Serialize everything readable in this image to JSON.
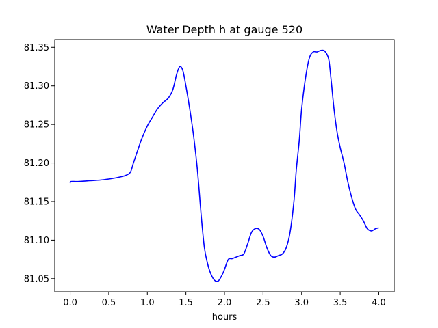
{
  "chart_data": {
    "type": "line",
    "title": "Water Depth h at gauge 520",
    "xlabel": "hours",
    "ylabel": "",
    "xlim": [
      -0.2,
      4.2
    ],
    "ylim": [
      81.033,
      81.36
    ],
    "xticks": [
      0.0,
      0.5,
      1.0,
      1.5,
      2.0,
      2.5,
      3.0,
      3.5,
      4.0
    ],
    "xtick_labels": [
      "0.0",
      "0.5",
      "1.0",
      "1.5",
      "2.0",
      "2.5",
      "3.0",
      "3.5",
      "4.0"
    ],
    "yticks": [
      81.05,
      81.1,
      81.15,
      81.2,
      81.25,
      81.3,
      81.35
    ],
    "ytick_labels": [
      "81.05",
      "81.10",
      "81.15",
      "81.20",
      "81.25",
      "81.30",
      "81.35"
    ],
    "grid": false,
    "series": [
      {
        "color": "#0000ff",
        "x": [
          0.0,
          0.01,
          0.1,
          0.25,
          0.4,
          0.55,
          0.65,
          0.72,
          0.78,
          0.82,
          0.87,
          0.93,
          1.0,
          1.07,
          1.13,
          1.2,
          1.27,
          1.33,
          1.38,
          1.42,
          1.46,
          1.5,
          1.55,
          1.6,
          1.65,
          1.7,
          1.74,
          1.78,
          1.82,
          1.87,
          1.92,
          1.97,
          2.0,
          2.05,
          2.1,
          2.15,
          2.2,
          2.25,
          2.3,
          2.35,
          2.4,
          2.45,
          2.5,
          2.55,
          2.6,
          2.65,
          2.7,
          2.75,
          2.8,
          2.85,
          2.9,
          2.93,
          2.97,
          3.0,
          3.05,
          3.1,
          3.15,
          3.2,
          3.25,
          3.3,
          3.35,
          3.38,
          3.42,
          3.46,
          3.5,
          3.55,
          3.6,
          3.65,
          3.7,
          3.75,
          3.8,
          3.85,
          3.9,
          3.93,
          3.96,
          4.0
        ],
        "y": [
          81.174,
          81.176,
          81.176,
          81.177,
          81.178,
          81.18,
          81.182,
          81.184,
          81.188,
          81.2,
          81.215,
          81.232,
          81.248,
          81.26,
          81.27,
          81.278,
          81.284,
          81.295,
          81.315,
          81.325,
          81.32,
          81.3,
          81.27,
          81.235,
          81.19,
          81.13,
          81.09,
          81.07,
          81.057,
          81.048,
          81.047,
          81.055,
          81.062,
          81.075,
          81.076,
          81.078,
          81.08,
          81.082,
          81.095,
          81.11,
          81.115,
          81.114,
          81.105,
          81.09,
          81.08,
          81.078,
          81.08,
          81.082,
          81.09,
          81.11,
          81.15,
          81.19,
          81.23,
          81.27,
          81.31,
          81.336,
          81.344,
          81.344,
          81.346,
          81.345,
          81.335,
          81.31,
          81.27,
          81.24,
          81.22,
          81.2,
          81.175,
          81.155,
          81.14,
          81.133,
          81.125,
          81.115,
          81.112,
          81.113,
          81.115,
          81.116
        ]
      }
    ]
  }
}
